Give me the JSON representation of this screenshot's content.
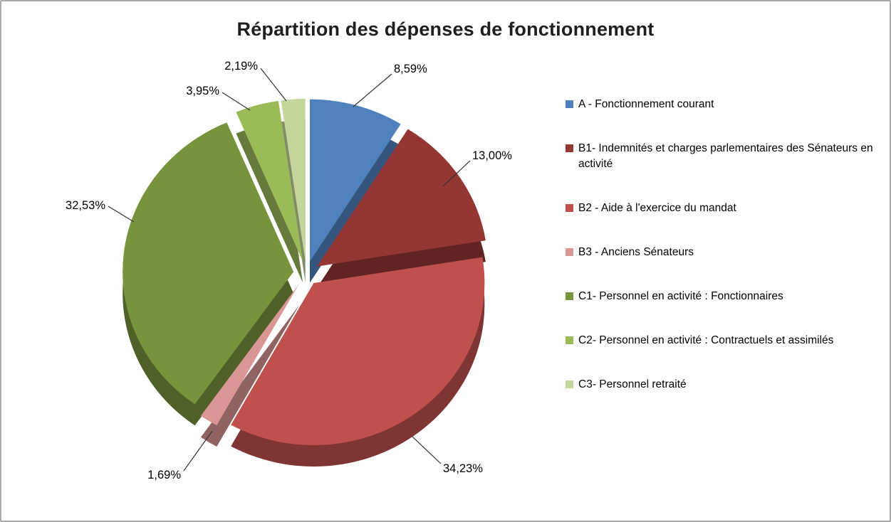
{
  "chart": {
    "title": "Répartition des dépenses de fonctionnement"
  },
  "chart_data": {
    "type": "pie",
    "style": "3d-exploded",
    "title": "Répartition des dépenses de fonctionnement",
    "start_angle_deg": -90,
    "direction": "clockwise",
    "legend_position": "right",
    "categories": [
      "A - Fonctionnement courant",
      "B1- Indemnités et charges parlementaires des Sénateurs en activité",
      "B2 - Aide à l'exercice du mandat",
      "B3 - Anciens Sénateurs",
      "C1- Personnel en activité : Fonctionnaires",
      "C2- Personnel en activité : Contractuels et assimilés",
      "C3- Personnel retraité"
    ],
    "values": [
      8.59,
      13.0,
      34.23,
      1.69,
      32.53,
      3.95,
      2.19
    ],
    "labels": [
      "8,59%",
      "13,00%",
      "34,23%",
      "1,69%",
      "32,53%",
      "3,95%",
      "2,19%"
    ],
    "colors": [
      "#4F81BD",
      "#943634",
      "#C0504D",
      "#D99694",
      "#77933C",
      "#9BBB59",
      "#C3D69B"
    ]
  }
}
